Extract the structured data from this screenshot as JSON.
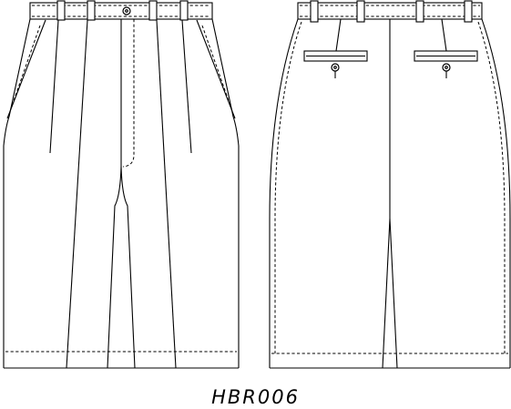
{
  "style_code": "HBR006",
  "colors": {
    "line": "#000000",
    "background": "#ffffff"
  }
}
